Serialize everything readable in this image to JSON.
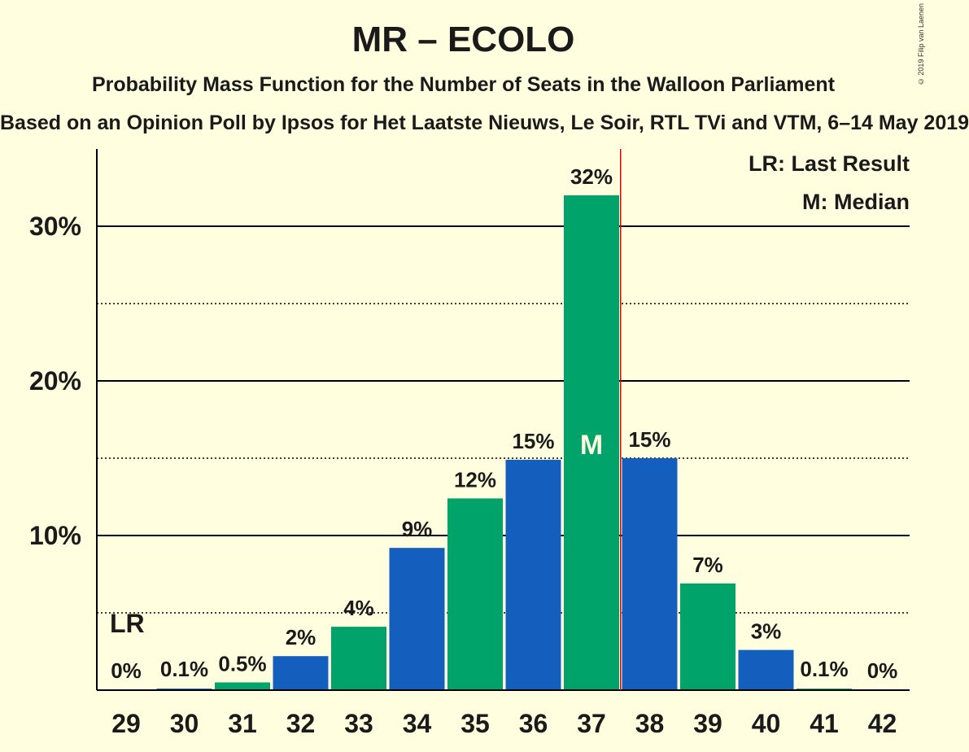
{
  "title": "MR – ECOLO",
  "subtitle": "Probability Mass Function for the Number of Seats in the Walloon Parliament",
  "subtitle2": "Based on an Opinion Poll by Ipsos for Het Laatste Nieuws, Le Soir, RTL TVi and VTM, 6–14 May 2019",
  "copyright": "© 2019 Filip van Laenen",
  "legend": {
    "lr": "LR: Last Result",
    "m": "M: Median"
  },
  "markers": {
    "lr_label": "LR",
    "lr_seat": 29,
    "median_label": "M",
    "median_seat": 37
  },
  "colors": {
    "blue": "#145fbd",
    "green": "#00a36a",
    "median_line": "#e00000",
    "background": "#ffffe0"
  },
  "chart_data": {
    "type": "bar",
    "categories": [
      "29",
      "30",
      "31",
      "32",
      "33",
      "34",
      "35",
      "36",
      "37",
      "38",
      "39",
      "40",
      "41",
      "42"
    ],
    "values": [
      0,
      0.1,
      0.5,
      2.2,
      4.1,
      9.2,
      12.4,
      14.9,
      32.0,
      15.0,
      6.9,
      2.6,
      0.1,
      0
    ],
    "labels": [
      "0%",
      "0.1%",
      "0.5%",
      "2%",
      "4%",
      "9%",
      "12%",
      "15%",
      "32%",
      "15%",
      "7%",
      "3%",
      "0.1%",
      "0%"
    ],
    "bar_colors": [
      "green",
      "blue",
      "green",
      "blue",
      "green",
      "blue",
      "green",
      "blue",
      "green",
      "blue",
      "green",
      "blue",
      "green",
      "blue"
    ],
    "ylim": [
      0,
      35
    ],
    "yticks": [
      10,
      20,
      30
    ],
    "ytick_labels": [
      "10%",
      "20%",
      "30%"
    ],
    "grid": true,
    "legend_position": "top-right"
  }
}
